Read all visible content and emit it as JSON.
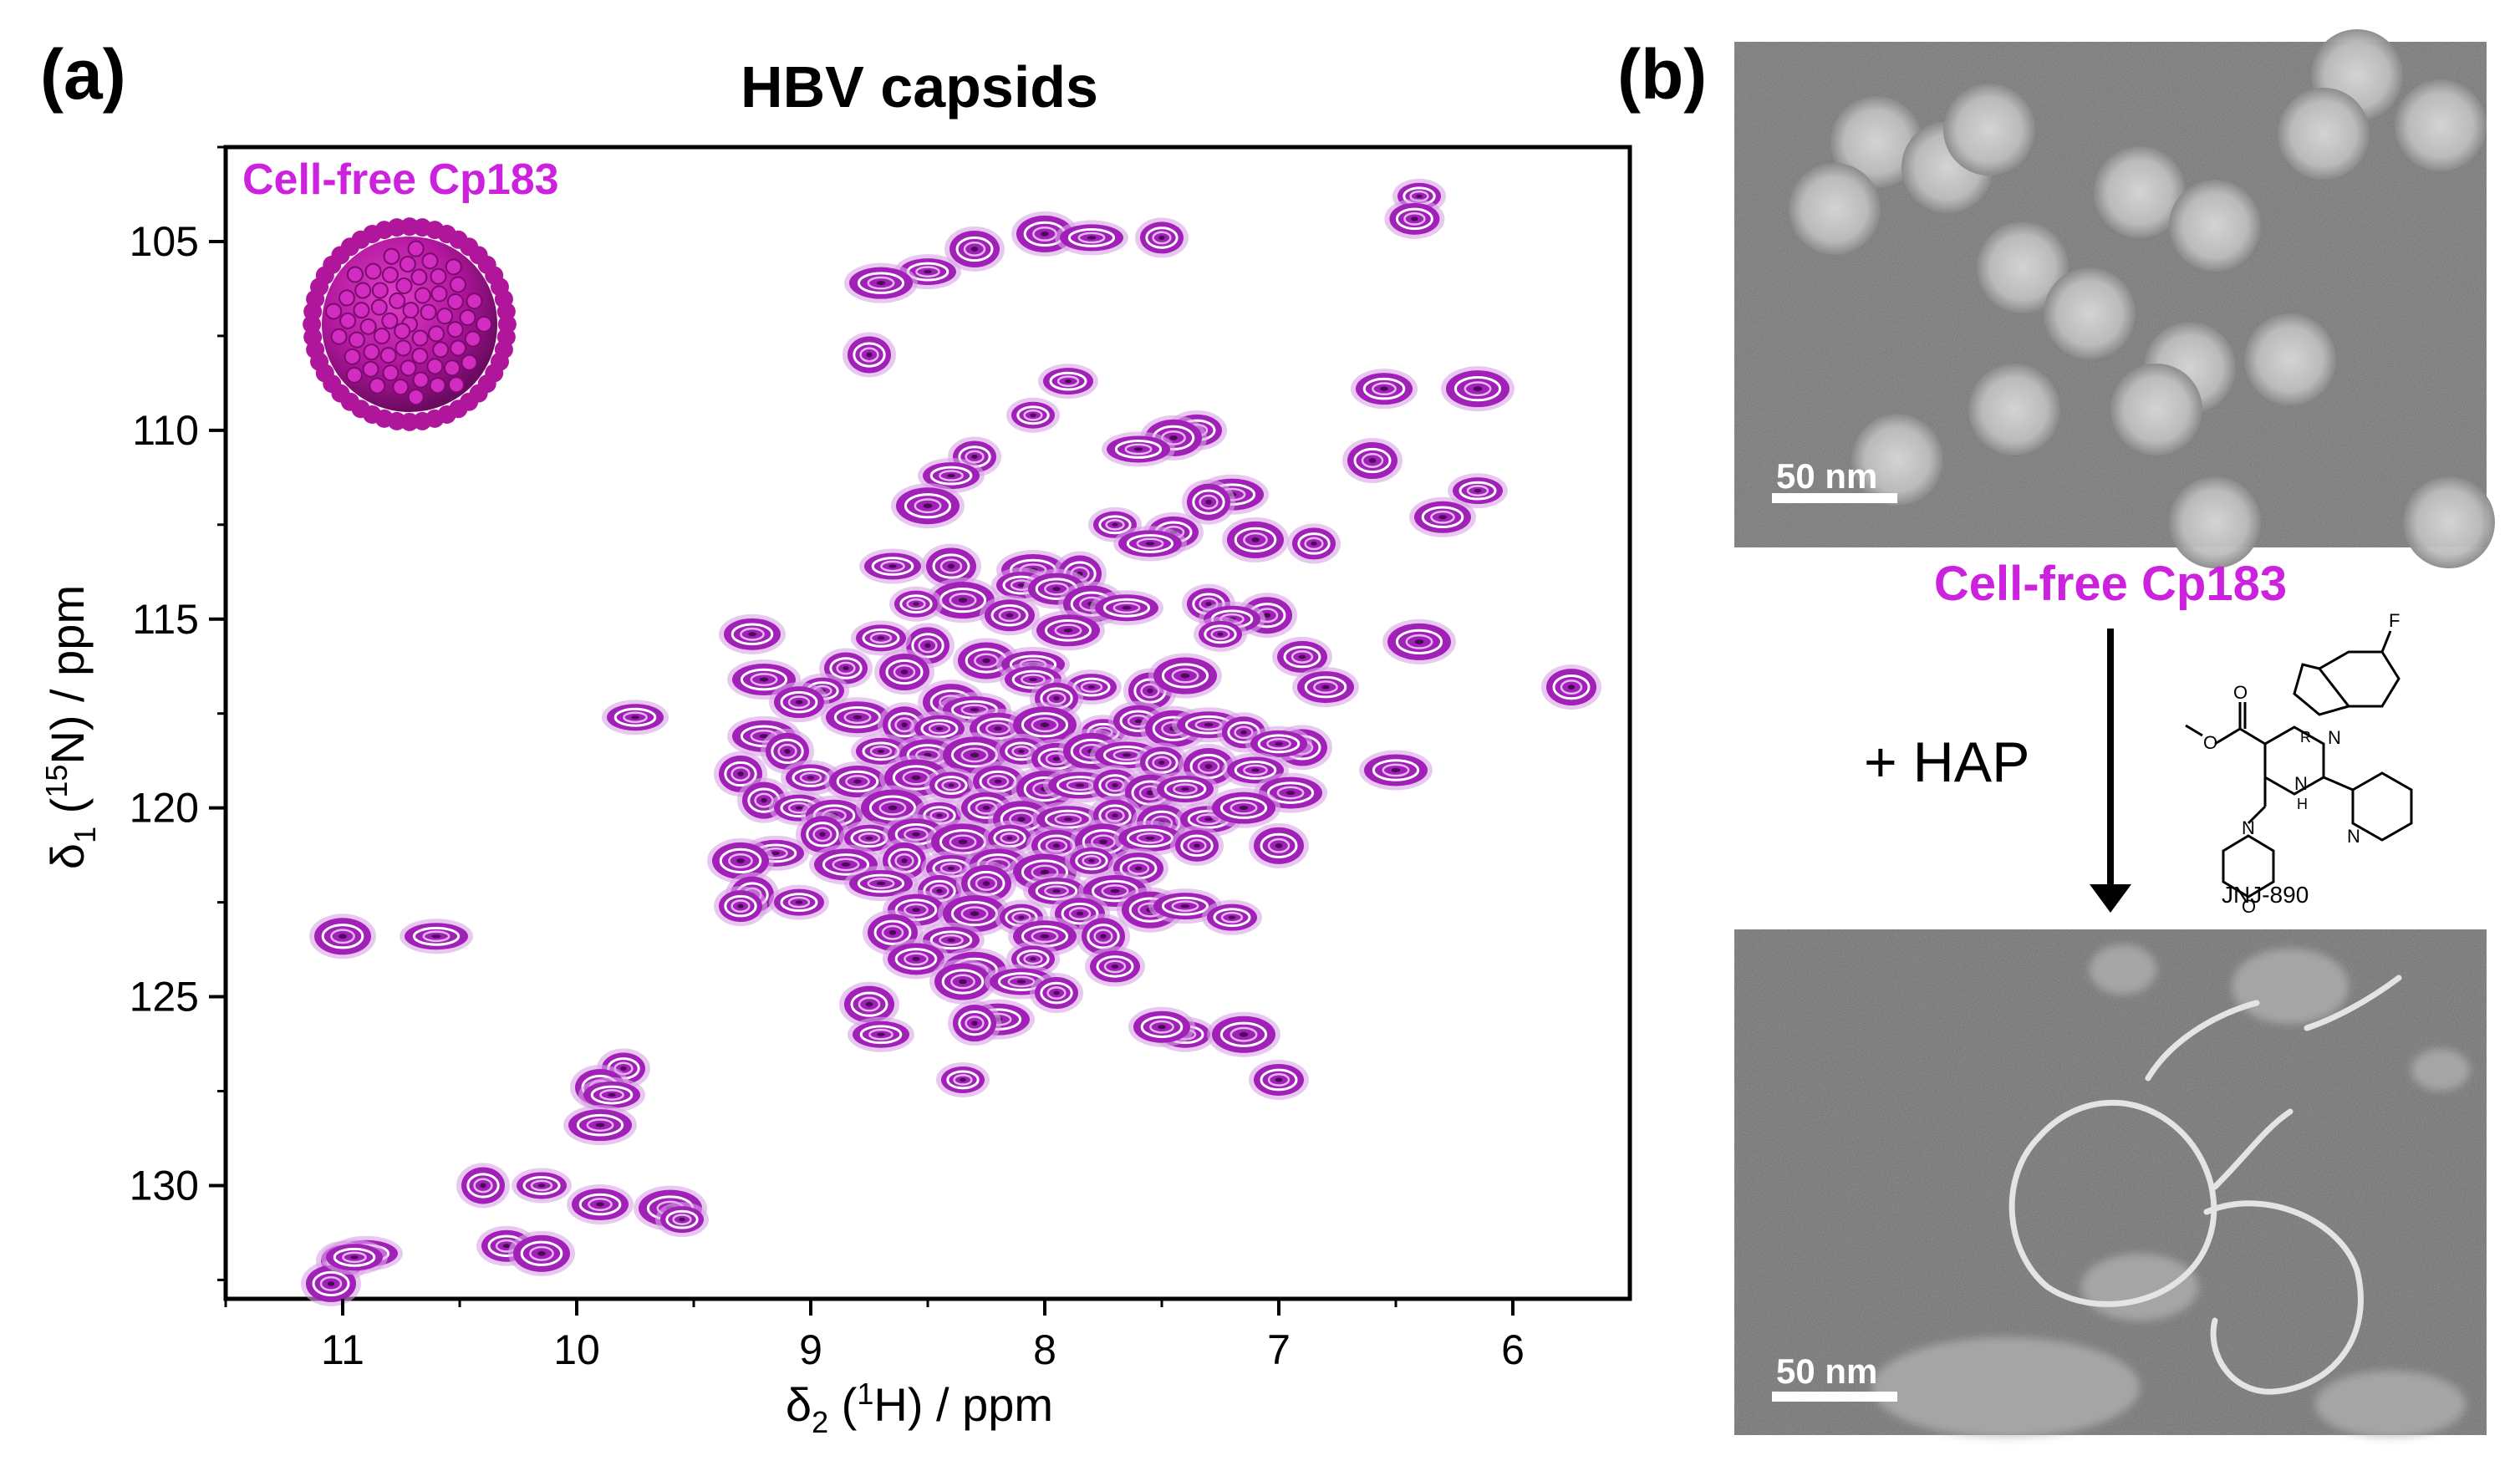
{
  "panel_a": {
    "label": "(a)",
    "title": "HBV capsids",
    "sample_label": "Cell-free Cp183",
    "x_axis_label": {
      "main": "δ",
      "sub": "2",
      "open": " (",
      "sup": "1",
      "rest": "H) / ppm"
    },
    "y_axis_label": {
      "main": "δ",
      "sub": "1",
      "open": " (",
      "sup": "15",
      "rest": "N) / ppm"
    },
    "x_tick_labels": [
      "11",
      "10",
      "9",
      "8",
      "7",
      "6"
    ],
    "y_tick_labels": [
      "105",
      "110",
      "115",
      "120",
      "125",
      "130"
    ]
  },
  "panel_b": {
    "label": "(b)",
    "scale_bar_top": "50 nm",
    "sample_label": "Cell-free Cp183",
    "treatment": "+ HAP",
    "compound_name": "JNJ-890",
    "compound_atoms": {
      "fluorine": "F",
      "stereo": "R",
      "n1": "N",
      "n2": "N",
      "nh": "H",
      "n3": "N",
      "o1": "O",
      "o2": "O",
      "o3": "O",
      "n4": "N"
    },
    "scale_bar_bottom": "50 nm"
  },
  "colors": {
    "peak": "#a020b8",
    "peak_light": "#d9a3e6",
    "label_magenta": "#cc22dd",
    "capsid": "#b0169c",
    "axis": "#000000"
  },
  "chart_data": {
    "type": "scatter",
    "title": "HBV capsids",
    "xlabel": "δ2 (1H) / ppm",
    "ylabel": "δ1 (15N) / ppm",
    "xlim": [
      11.5,
      5.5
    ],
    "ylim": [
      133,
      102.5
    ],
    "x_reversed": true,
    "y_reversed": true,
    "series": [
      {
        "name": "Cell-free Cp183",
        "points": [
          [
            6.4,
            103.8
          ],
          [
            6.42,
            104.4
          ],
          [
            8.0,
            104.8
          ],
          [
            7.8,
            104.9
          ],
          [
            7.5,
            104.9
          ],
          [
            8.3,
            105.2
          ],
          [
            8.5,
            105.8
          ],
          [
            8.7,
            106.1
          ],
          [
            8.75,
            108.0
          ],
          [
            7.9,
            108.7
          ],
          [
            6.55,
            108.9
          ],
          [
            6.15,
            108.9
          ],
          [
            8.05,
            109.6
          ],
          [
            7.35,
            110.0
          ],
          [
            7.45,
            110.2
          ],
          [
            7.6,
            110.5
          ],
          [
            8.3,
            110.7
          ],
          [
            6.6,
            110.8
          ],
          [
            8.4,
            111.2
          ],
          [
            7.2,
            111.7
          ],
          [
            7.3,
            111.9
          ],
          [
            6.15,
            111.6
          ],
          [
            6.3,
            112.3
          ],
          [
            8.5,
            112.0
          ],
          [
            7.7,
            112.5
          ],
          [
            7.45,
            112.7
          ],
          [
            7.1,
            112.9
          ],
          [
            7.55,
            113.0
          ],
          [
            6.85,
            113.0
          ],
          [
            8.4,
            113.6
          ],
          [
            8.65,
            113.6
          ],
          [
            8.05,
            113.7
          ],
          [
            7.85,
            113.8
          ],
          [
            8.1,
            114.1
          ],
          [
            7.95,
            114.2
          ],
          [
            8.35,
            114.5
          ],
          [
            8.55,
            114.6
          ],
          [
            8.15,
            114.9
          ],
          [
            7.8,
            114.6
          ],
          [
            7.65,
            114.7
          ],
          [
            7.3,
            114.6
          ],
          [
            7.05,
            114.9
          ],
          [
            7.2,
            115.0
          ],
          [
            7.9,
            115.3
          ],
          [
            8.5,
            115.7
          ],
          [
            8.7,
            115.5
          ],
          [
            9.25,
            115.4
          ],
          [
            6.4,
            115.6
          ],
          [
            7.25,
            115.4
          ],
          [
            6.9,
            116.0
          ],
          [
            8.25,
            116.1
          ],
          [
            8.05,
            116.2
          ],
          [
            8.85,
            116.3
          ],
          [
            8.6,
            116.4
          ],
          [
            8.05,
            116.6
          ],
          [
            9.2,
            116.6
          ],
          [
            7.55,
            116.9
          ],
          [
            7.8,
            116.8
          ],
          [
            6.8,
            116.8
          ],
          [
            7.4,
            116.5
          ],
          [
            8.95,
            116.9
          ],
          [
            9.05,
            117.2
          ],
          [
            8.4,
            117.2
          ],
          [
            8.3,
            117.4
          ],
          [
            7.95,
            117.1
          ],
          [
            5.75,
            116.8
          ],
          [
            9.75,
            117.6
          ],
          [
            8.8,
            117.6
          ],
          [
            8.6,
            117.8
          ],
          [
            8.45,
            117.9
          ],
          [
            8.2,
            117.9
          ],
          [
            8.0,
            117.8
          ],
          [
            7.75,
            118.0
          ],
          [
            7.6,
            117.7
          ],
          [
            7.45,
            117.9
          ],
          [
            7.3,
            117.8
          ],
          [
            7.15,
            118.0
          ],
          [
            6.9,
            118.4
          ],
          [
            7.0,
            118.3
          ],
          [
            9.2,
            118.1
          ],
          [
            9.1,
            118.5
          ],
          [
            8.7,
            118.5
          ],
          [
            8.5,
            118.6
          ],
          [
            8.3,
            118.6
          ],
          [
            8.1,
            118.5
          ],
          [
            7.95,
            118.7
          ],
          [
            7.8,
            118.5
          ],
          [
            7.65,
            118.6
          ],
          [
            7.5,
            118.8
          ],
          [
            7.3,
            118.9
          ],
          [
            7.1,
            119.0
          ],
          [
            6.5,
            119.0
          ],
          [
            9.3,
            119.1
          ],
          [
            9.0,
            119.2
          ],
          [
            8.8,
            119.3
          ],
          [
            8.55,
            119.2
          ],
          [
            8.4,
            119.4
          ],
          [
            8.2,
            119.3
          ],
          [
            8.0,
            119.5
          ],
          [
            7.85,
            119.4
          ],
          [
            7.7,
            119.4
          ],
          [
            7.55,
            119.6
          ],
          [
            7.4,
            119.5
          ],
          [
            6.95,
            119.6
          ],
          [
            9.2,
            119.8
          ],
          [
            9.05,
            120.0
          ],
          [
            8.9,
            120.2
          ],
          [
            8.65,
            120.0
          ],
          [
            8.45,
            120.2
          ],
          [
            8.25,
            120.0
          ],
          [
            8.1,
            120.3
          ],
          [
            7.9,
            120.3
          ],
          [
            7.7,
            120.2
          ],
          [
            7.5,
            120.4
          ],
          [
            7.3,
            120.3
          ],
          [
            7.15,
            120.0
          ],
          [
            8.95,
            120.7
          ],
          [
            8.75,
            120.8
          ],
          [
            8.55,
            120.7
          ],
          [
            8.35,
            120.9
          ],
          [
            8.15,
            120.8
          ],
          [
            7.95,
            121.0
          ],
          [
            7.75,
            120.9
          ],
          [
            7.55,
            120.8
          ],
          [
            7.35,
            121.0
          ],
          [
            7.0,
            121.0
          ],
          [
            9.15,
            121.2
          ],
          [
            8.85,
            121.5
          ],
          [
            8.6,
            121.4
          ],
          [
            8.4,
            121.6
          ],
          [
            8.2,
            121.5
          ],
          [
            8.0,
            121.7
          ],
          [
            7.8,
            121.4
          ],
          [
            7.6,
            121.6
          ],
          [
            9.3,
            121.4
          ],
          [
            8.7,
            122.0
          ],
          [
            8.45,
            122.2
          ],
          [
            8.25,
            122.0
          ],
          [
            7.95,
            122.2
          ],
          [
            7.7,
            122.2
          ],
          [
            9.25,
            122.3
          ],
          [
            9.05,
            122.5
          ],
          [
            8.55,
            122.7
          ],
          [
            8.3,
            122.8
          ],
          [
            8.1,
            122.9
          ],
          [
            7.85,
            122.8
          ],
          [
            7.55,
            122.7
          ],
          [
            7.4,
            122.6
          ],
          [
            9.3,
            122.6
          ],
          [
            8.65,
            123.3
          ],
          [
            8.4,
            123.5
          ],
          [
            8.0,
            123.4
          ],
          [
            7.75,
            123.4
          ],
          [
            7.2,
            122.9
          ],
          [
            8.55,
            124.0
          ],
          [
            8.3,
            124.3
          ],
          [
            8.05,
            124.0
          ],
          [
            7.7,
            124.2
          ],
          [
            8.35,
            124.6
          ],
          [
            8.1,
            124.6
          ],
          [
            7.95,
            124.9
          ],
          [
            8.75,
            125.2
          ],
          [
            8.7,
            126.0
          ],
          [
            8.2,
            125.6
          ],
          [
            8.3,
            125.7
          ],
          [
            7.4,
            126.0
          ],
          [
            7.5,
            125.8
          ],
          [
            7.15,
            126.0
          ],
          [
            8.35,
            127.2
          ],
          [
            7.0,
            127.2
          ],
          [
            11.0,
            123.4
          ],
          [
            10.6,
            123.4
          ],
          [
            9.8,
            126.9
          ],
          [
            9.9,
            127.4
          ],
          [
            9.85,
            127.6
          ],
          [
            9.9,
            128.4
          ],
          [
            10.4,
            130.0
          ],
          [
            10.15,
            130.0
          ],
          [
            9.9,
            130.5
          ],
          [
            9.6,
            130.6
          ],
          [
            9.55,
            130.9
          ],
          [
            10.3,
            131.6
          ],
          [
            10.15,
            131.8
          ],
          [
            10.9,
            131.8
          ],
          [
            11.0,
            132.0
          ],
          [
            11.05,
            132.6
          ],
          [
            10.95,
            131.9
          ]
        ]
      }
    ],
    "grid": false,
    "legend": "none"
  }
}
